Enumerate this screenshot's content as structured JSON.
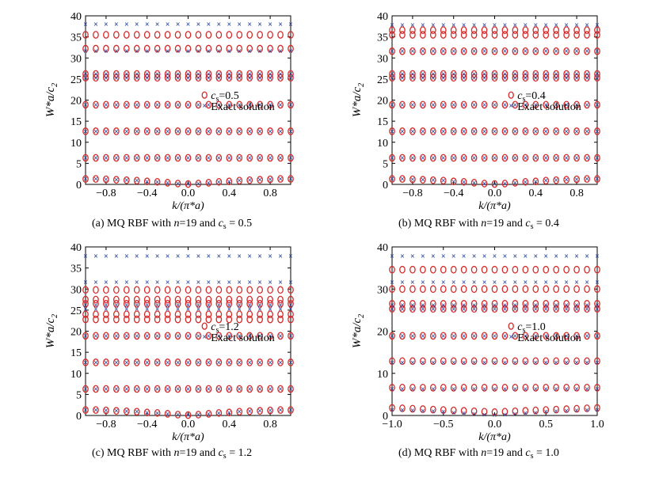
{
  "figure": {
    "captions": [
      {
        "pre": "(a) MQ RBF with ",
        "n_sym": "n",
        "n_val": "=19 and ",
        "c_sym": "c",
        "c_sub": "s",
        "c_val": " = 0.5"
      },
      {
        "pre": "(b) MQ RBF with ",
        "n_sym": "n",
        "n_val": "=19 and ",
        "c_sym": "c",
        "c_sub": "s",
        "c_val": " = 0.4"
      },
      {
        "pre": "(c) MQ RBF with ",
        "n_sym": "n",
        "n_val": "=19 and ",
        "c_sym": "c",
        "c_sub": "s",
        "c_val": " = 1.2"
      },
      {
        "pre": "(d) MQ RBF with ",
        "n_sym": "n",
        "n_val": "=19 and ",
        "c_sym": "c",
        "c_sub": "s",
        "c_val": " = 1.0"
      }
    ]
  },
  "colors": {
    "mq": "#d42a2a",
    "exact": "#1f3c9a"
  },
  "chart_data": [
    {
      "type": "scatter",
      "xlabel": "k/(π*a)",
      "ylabel": "W*a/c2",
      "xlim": [
        -1.0,
        1.0
      ],
      "ylim": [
        0,
        40
      ],
      "xticks": [
        -0.8,
        -0.4,
        0.0,
        0.4,
        0.8
      ],
      "xtick_labels": [
        "−0.8",
        "−0.4",
        "0.0",
        "0.4",
        "0.8"
      ],
      "yticks": [
        0,
        5,
        10,
        15,
        20,
        25,
        30,
        35,
        40
      ],
      "legend": {
        "position": "middle-right",
        "mq_label": "cs=0.5",
        "exact_label": "Exact solution"
      },
      "x": [
        -1.0,
        -0.9,
        -0.8,
        -0.7,
        -0.6,
        -0.5,
        -0.4,
        -0.3,
        -0.2,
        -0.1,
        0.0,
        0.1,
        0.2,
        0.3,
        0.4,
        0.5,
        0.6,
        0.7,
        0.8,
        0.9,
        1.0
      ],
      "series": [
        {
          "kind": "mq",
          "bands": [
            [
              1.3,
              1.3,
              1.2,
              1.1,
              1.0,
              0.9,
              0.7,
              0.6,
              0.4,
              0.2,
              0.1,
              0.2,
              0.4,
              0.6,
              0.7,
              0.9,
              1.0,
              1.1,
              1.2,
              1.3,
              1.3
            ],
            6.3,
            12.6,
            18.9,
            25.3,
            26.2,
            32.2,
            35.5
          ]
        },
        {
          "kind": "exact",
          "bands": [
            [
              1.3,
              1.3,
              1.2,
              1.1,
              1.0,
              0.9,
              0.7,
              0.6,
              0.4,
              0.2,
              0.1,
              0.2,
              0.4,
              0.6,
              0.7,
              0.9,
              1.0,
              1.1,
              1.2,
              1.3,
              1.3
            ],
            6.3,
            12.6,
            18.9,
            25.3,
            26.2,
            31.6,
            38.0
          ]
        }
      ]
    },
    {
      "type": "scatter",
      "xlabel": "k/(π*a)",
      "ylabel": "W*a/c2",
      "xlim": [
        -1.0,
        1.0
      ],
      "ylim": [
        0,
        40
      ],
      "xticks": [
        -0.8,
        -0.4,
        0.0,
        0.4,
        0.8
      ],
      "xtick_labels": [
        "−0.8",
        "−0.4",
        "0.0",
        "0.4",
        "0.8"
      ],
      "yticks": [
        0,
        5,
        10,
        15,
        20,
        25,
        30,
        35,
        40
      ],
      "legend": {
        "position": "middle-right",
        "mq_label": "cs=0.4",
        "exact_label": "Exact solution"
      },
      "x": [
        -1.0,
        -0.9,
        -0.8,
        -0.7,
        -0.6,
        -0.5,
        -0.4,
        -0.3,
        -0.2,
        -0.1,
        0.0,
        0.1,
        0.2,
        0.3,
        0.4,
        0.5,
        0.6,
        0.7,
        0.8,
        0.9,
        1.0
      ],
      "series": [
        {
          "kind": "mq",
          "bands": [
            [
              1.3,
              1.3,
              1.2,
              1.1,
              1.0,
              0.9,
              0.7,
              0.6,
              0.4,
              0.2,
              0.1,
              0.2,
              0.4,
              0.6,
              0.7,
              0.9,
              1.0,
              1.1,
              1.2,
              1.3,
              1.3
            ],
            6.3,
            12.6,
            18.9,
            25.3,
            26.2,
            31.6,
            35.5,
            36.6
          ]
        },
        {
          "kind": "exact",
          "bands": [
            [
              1.3,
              1.3,
              1.2,
              1.1,
              1.0,
              0.9,
              0.7,
              0.6,
              0.4,
              0.2,
              0.1,
              0.2,
              0.4,
              0.6,
              0.7,
              0.9,
              1.0,
              1.1,
              1.2,
              1.3,
              1.3
            ],
            6.3,
            12.6,
            18.9,
            25.3,
            26.2,
            31.6,
            37.8
          ]
        }
      ]
    },
    {
      "type": "scatter",
      "xlabel": "k/(π*a)",
      "ylabel": "W*a/c2",
      "xlim": [
        -1.0,
        1.0
      ],
      "ylim": [
        0,
        40
      ],
      "xticks": [
        -0.8,
        -0.4,
        0.0,
        0.4,
        0.8
      ],
      "xtick_labels": [
        "−0.8",
        "−0.4",
        "0.0",
        "0.4",
        "0.8"
      ],
      "yticks": [
        0,
        5,
        10,
        15,
        20,
        25,
        30,
        35,
        40
      ],
      "legend": {
        "position": "middle-right",
        "mq_label": "cs=1.2",
        "exact_label": "Exact solution"
      },
      "x": [
        -1.0,
        -0.9,
        -0.8,
        -0.7,
        -0.6,
        -0.5,
        -0.4,
        -0.3,
        -0.2,
        -0.1,
        0.0,
        0.1,
        0.2,
        0.3,
        0.4,
        0.5,
        0.6,
        0.7,
        0.8,
        0.9,
        1.0
      ],
      "series": [
        {
          "kind": "mq",
          "bands": [
            [
              1.3,
              1.3,
              1.2,
              1.1,
              1.0,
              0.9,
              0.7,
              0.6,
              0.4,
              0.2,
              0.1,
              0.2,
              0.4,
              0.6,
              0.7,
              0.9,
              1.0,
              1.1,
              1.2,
              1.3,
              1.3
            ],
            6.3,
            12.6,
            18.9,
            24.0,
            26.5,
            27.5,
            29.8,
            22.8
          ]
        },
        {
          "kind": "exact",
          "bands": [
            [
              1.3,
              1.3,
              1.2,
              1.1,
              1.0,
              0.9,
              0.7,
              0.6,
              0.4,
              0.2,
              0.1,
              0.2,
              0.4,
              0.6,
              0.7,
              0.9,
              1.0,
              1.1,
              1.2,
              1.3,
              1.3
            ],
            6.3,
            12.6,
            18.9,
            25.3,
            26.2,
            31.6,
            37.8
          ]
        }
      ]
    },
    {
      "type": "scatter",
      "xlabel": "k/(π*a)",
      "ylabel": "W*a/c2",
      "xlim": [
        -1.0,
        1.0
      ],
      "ylim": [
        0,
        40
      ],
      "xticks": [
        -1.0,
        -0.5,
        0.0,
        0.5,
        1.0
      ],
      "xtick_labels": [
        "−1.0",
        "−0.5",
        "0.0",
        "0.5",
        "1.0"
      ],
      "yticks": [
        0,
        10,
        20,
        30,
        40
      ],
      "legend": {
        "position": "middle-right",
        "mq_label": "cs=1.0",
        "exact_label": "Exact solution"
      },
      "x": [
        -1.0,
        -0.9,
        -0.8,
        -0.7,
        -0.6,
        -0.5,
        -0.4,
        -0.3,
        -0.2,
        -0.1,
        0.0,
        0.1,
        0.2,
        0.3,
        0.4,
        0.5,
        0.6,
        0.7,
        0.8,
        0.9,
        1.0
      ],
      "series": [
        {
          "kind": "mq",
          "bands": [
            [
              1.8,
              1.7,
              1.6,
              1.5,
              1.4,
              1.3,
              1.2,
              1.1,
              1.0,
              0.9,
              0.8,
              0.9,
              1.0,
              1.1,
              1.2,
              1.3,
              1.4,
              1.5,
              1.6,
              1.7,
              1.8
            ],
            6.6,
            12.9,
            18.9,
            25.3,
            26.5,
            30.0,
            34.6
          ]
        },
        {
          "kind": "exact",
          "bands": [
            [
              1.3,
              1.3,
              1.2,
              1.1,
              1.0,
              0.9,
              0.7,
              0.6,
              0.4,
              0.2,
              0.1,
              0.2,
              0.4,
              0.6,
              0.7,
              0.9,
              1.0,
              1.1,
              1.2,
              1.3,
              1.3
            ],
            6.3,
            12.6,
            18.9,
            25.3,
            26.2,
            31.6,
            37.8
          ]
        }
      ]
    }
  ]
}
